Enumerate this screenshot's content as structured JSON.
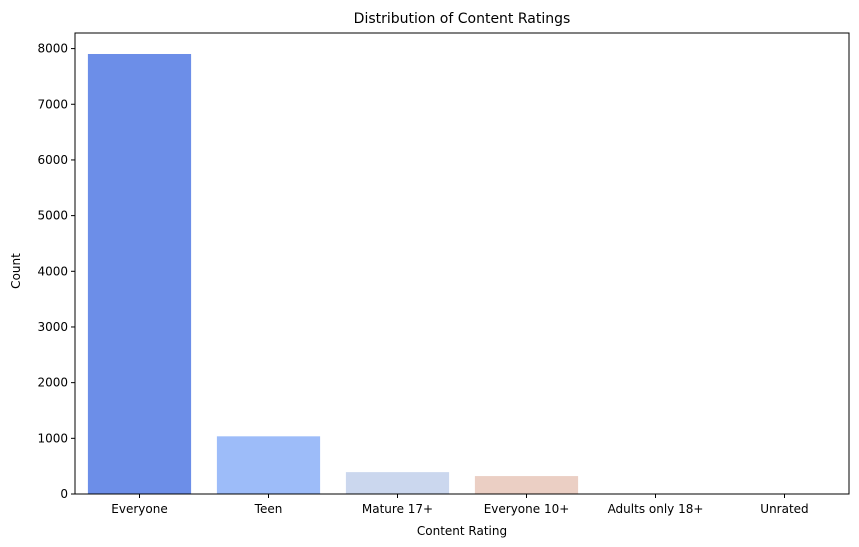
{
  "chart_data": {
    "type": "bar",
    "title": "Distribution of Content Ratings",
    "xlabel": "Content Rating",
    "ylabel": "Count",
    "categories": [
      "Everyone",
      "Teen",
      "Mature 17+",
      "Everyone 10+",
      "Adults only 18+",
      "Unrated"
    ],
    "values": [
      7903,
      1036,
      393,
      322,
      3,
      2
    ],
    "bar_colors": [
      "#6c8ee8",
      "#9dbcf9",
      "#cbd7ee",
      "#ebcfc4",
      "#f1a98a",
      "#e2725a"
    ],
    "ylim": [
      0,
      8280
    ],
    "yticks": [
      0,
      1000,
      2000,
      3000,
      4000,
      5000,
      6000,
      7000,
      8000
    ],
    "grid": false,
    "legend": "none"
  }
}
